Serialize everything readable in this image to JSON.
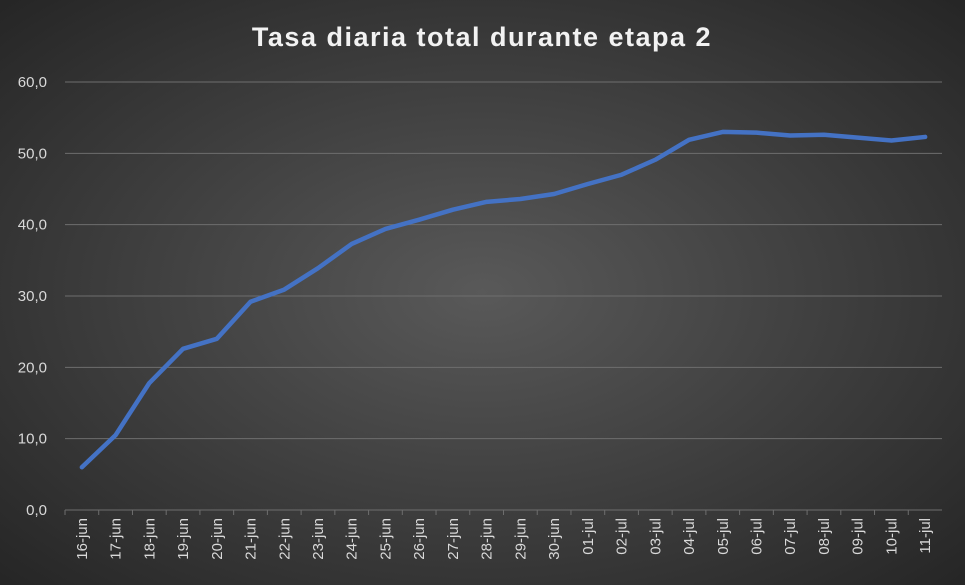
{
  "chart_data": {
    "type": "line",
    "title": "Tasa diaria total durante etapa 2",
    "categories": [
      "16-jun",
      "17-jun",
      "18-jun",
      "19-jun",
      "20-jun",
      "21-jun",
      "22-jun",
      "23-jun",
      "24-jun",
      "25-jun",
      "26-jun",
      "27-jun",
      "28-jun",
      "29-jun",
      "30-jun",
      "01-jul",
      "02-jul",
      "03-jul",
      "04-jul",
      "05-jul",
      "06-jul",
      "07-jul",
      "08-jul",
      "09-jul",
      "10-jul",
      "11-jul"
    ],
    "values": [
      6.0,
      10.5,
      17.8,
      22.6,
      24.0,
      29.2,
      30.9,
      33.9,
      37.3,
      39.4,
      40.7,
      42.1,
      43.2,
      43.6,
      44.3,
      45.7,
      47.0,
      49.1,
      51.9,
      53.0,
      52.9,
      52.5,
      52.6,
      52.2,
      51.8,
      52.3
    ],
    "color": "#4472c4",
    "ylim": [
      0,
      60
    ],
    "yticks": [
      {
        "value": 0,
        "label": "0,0"
      },
      {
        "value": 10,
        "label": "10,0"
      },
      {
        "value": 20,
        "label": "20,0"
      },
      {
        "value": 30,
        "label": "30,0"
      },
      {
        "value": 40,
        "label": "40,0"
      },
      {
        "value": 50,
        "label": "50,0"
      },
      {
        "value": 60,
        "label": "60,0"
      }
    ],
    "grid": true
  }
}
